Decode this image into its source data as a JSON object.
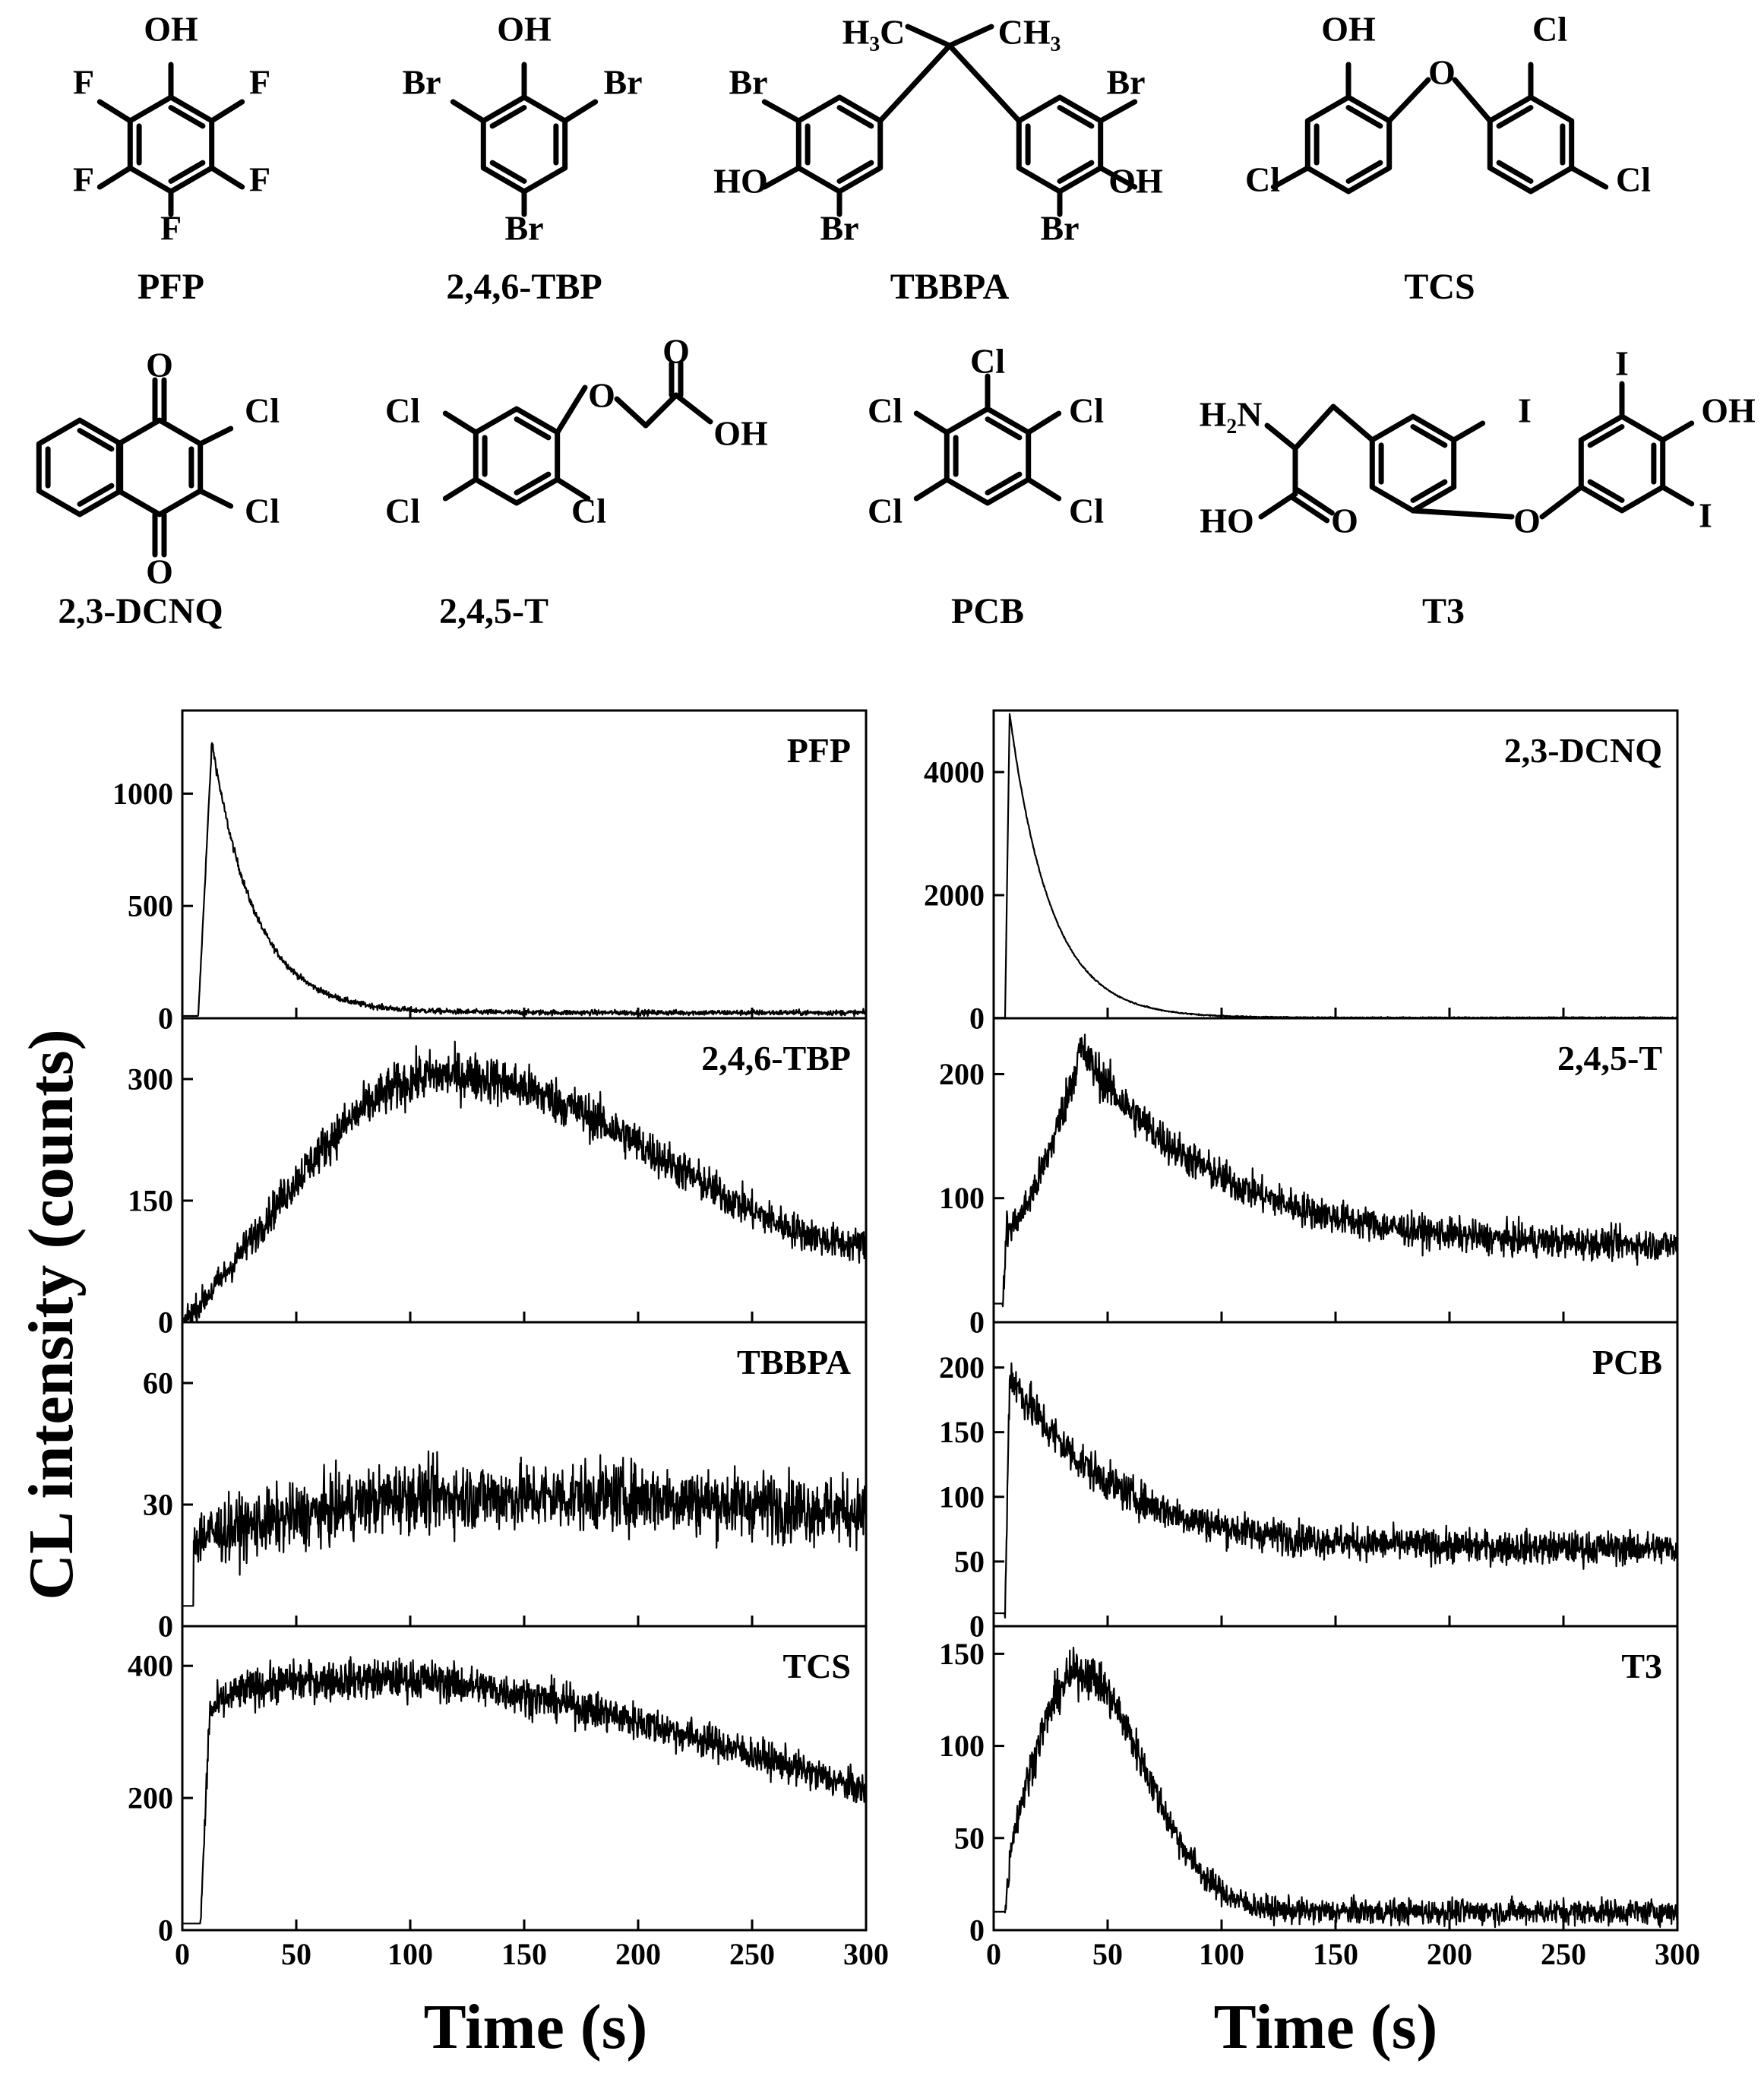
{
  "structures": [
    {
      "name": "PFP",
      "atoms": [
        "OH",
        "F",
        "F",
        "F",
        "F",
        "F"
      ]
    },
    {
      "name": "2,4,6-TBP",
      "atoms": [
        "OH",
        "Br",
        "Br",
        "Br"
      ]
    },
    {
      "name": "TBBPA",
      "atoms": [
        "H₃C",
        "CH₃",
        "Br",
        "Br",
        "HO",
        "OH",
        "Br",
        "Br"
      ]
    },
    {
      "name": "TCS",
      "atoms": [
        "OH",
        "Cl",
        "O",
        "Cl",
        "Cl"
      ]
    },
    {
      "name": "2,3-DCNQ",
      "atoms": [
        "O",
        "Cl",
        "Cl",
        "O"
      ]
    },
    {
      "name": "2,4,5-T",
      "atoms": [
        "Cl",
        "O",
        "O",
        "OH",
        "Cl",
        "Cl"
      ]
    },
    {
      "name": "PCB",
      "atoms": [
        "Cl",
        "Cl",
        "Cl",
        "Cl",
        "Cl"
      ]
    },
    {
      "name": "T3",
      "atoms": [
        "H₂N",
        "I",
        "I",
        "OH",
        "HO",
        "O",
        "O",
        "I"
      ]
    }
  ],
  "ylabel": "CL intensity (counts)",
  "xlabel": "Time (s)",
  "chart_data": [
    {
      "type": "line",
      "title": "PFP",
      "x_range": [
        0,
        300
      ],
      "ylim": [
        0,
        1370
      ],
      "yticks": [
        0,
        500,
        1000
      ],
      "baseline": 10,
      "onset": 7,
      "peak_time": 13,
      "peak_value": 1230,
      "tail_value": 25,
      "noise": 15
    },
    {
      "type": "line",
      "title": "2,4,6-TBP",
      "x_range": [
        0,
        300
      ],
      "ylim": [
        0,
        375
      ],
      "yticks": [
        0,
        150,
        300
      ],
      "baseline": 5,
      "onset": 1,
      "peak_time": 115,
      "peak_value": 305,
      "end_value": 95,
      "noise": 20
    },
    {
      "type": "line",
      "title": "TBBPA",
      "x_range": [
        0,
        300
      ],
      "ylim": [
        0,
        75
      ],
      "yticks": [
        0,
        30,
        60
      ],
      "baseline": 5,
      "onset": 5,
      "level_after_onset": 22,
      "plateau_value": 32,
      "end_value": 28,
      "noise": 7
    },
    {
      "type": "line",
      "title": "TCS",
      "x_range": [
        0,
        300
      ],
      "ylim": [
        0,
        460
      ],
      "yticks": [
        0,
        200,
        400
      ],
      "baseline": 10,
      "onset": 8,
      "peak_time": 100,
      "peak_value": 380,
      "end_value": 210,
      "noise": 20
    },
    {
      "type": "line",
      "title": "2,3-DCNQ",
      "x_range": [
        0,
        300
      ],
      "ylim": [
        0,
        5000
      ],
      "yticks": [
        0,
        2000,
        4000
      ],
      "baseline": 10,
      "onset": 5,
      "peak_time": 7,
      "peak_value": 4950,
      "tail_value": 10,
      "noise": 12
    },
    {
      "type": "line",
      "title": "2,4,5-T",
      "x_range": [
        0,
        300
      ],
      "ylim": [
        0,
        245
      ],
      "yticks": [
        0,
        100,
        200
      ],
      "baseline": 15,
      "onset": 4,
      "peak_time": 38,
      "peak_value": 220,
      "end_value": 60,
      "noise": 12
    },
    {
      "type": "line",
      "title": "PCB",
      "x_range": [
        0,
        300
      ],
      "ylim": [
        0,
        235
      ],
      "yticks": [
        0,
        50,
        100,
        150,
        200
      ],
      "baseline": 10,
      "onset": 5,
      "peak_time": 7,
      "peak_value": 195,
      "end_value": 60,
      "noise": 12
    },
    {
      "type": "line",
      "title": "T3",
      "x_range": [
        0,
        300
      ],
      "ylim": [
        0,
        165
      ],
      "yticks": [
        0,
        50,
        100,
        150
      ],
      "baseline": 10,
      "onset": 5,
      "peak_time": 38,
      "peak_value": 140,
      "end_value": 10,
      "noise": 8
    }
  ],
  "xticks": [
    0,
    50,
    100,
    150,
    200,
    250,
    300
  ]
}
